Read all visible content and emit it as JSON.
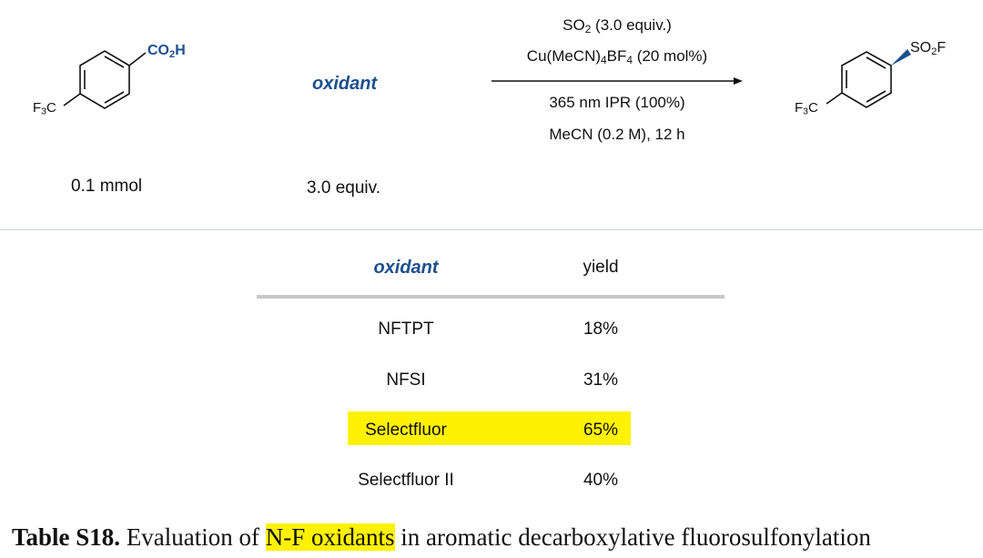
{
  "scheme": {
    "reactant": {
      "top_group": "CO",
      "top_group_sub": "2",
      "top_group_end": "H",
      "left_group": "F",
      "left_group_sub": "3",
      "left_group_end": "C",
      "amount": "0.1 mmol"
    },
    "reagent": {
      "label": "oxidant",
      "amount": "3.0 equiv."
    },
    "conditions": {
      "line1_a": "SO",
      "line1_sub": "2",
      "line1_b": " (3.0 equiv.)",
      "line2_a": "Cu(MeCN)",
      "line2_sub1": "4",
      "line2_b": "BF",
      "line2_sub2": "4",
      "line2_c": " (20 mol%)",
      "line3": "365 nm IPR (100%)",
      "line4": "MeCN (0.2 M), 12 h"
    },
    "product": {
      "top_group": "SO",
      "top_group_sub": "2",
      "top_group_end": "F",
      "left_group": "F",
      "left_group_sub": "3",
      "left_group_end": "C"
    }
  },
  "table": {
    "headers": [
      "oxidant",
      "yield"
    ],
    "rows": [
      {
        "oxidant": "NFTPT",
        "yield": "18%",
        "highlight": false
      },
      {
        "oxidant": "NFSI",
        "yield": "31%",
        "highlight": false
      },
      {
        "oxidant": "Selectfluor",
        "yield": "65%",
        "highlight": true
      },
      {
        "oxidant": "Selectfluor II",
        "yield": "40%",
        "highlight": false
      }
    ],
    "highlight_color": "#fff200",
    "header_oxidant_color": "#1d4f8f"
  },
  "caption": {
    "label": "Table S18.",
    "text_before": " Evaluation of ",
    "highlighted": "N-F oxidants",
    "text_after": " in aromatic decarboxylative fluorosulfonylation"
  }
}
